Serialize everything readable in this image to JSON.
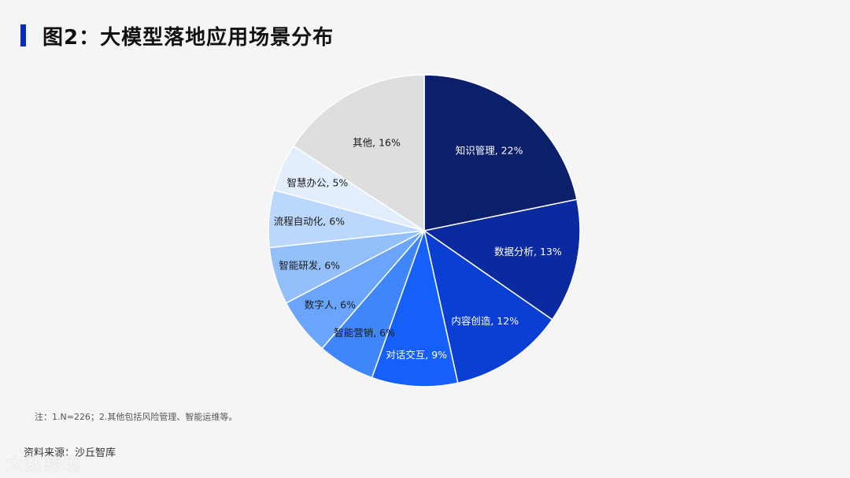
{
  "page": {
    "title": "图2：大模型落地应用场景分布",
    "note": "注：1.N=226；2.其他包括风险管理、智能运维等。",
    "source": "资料来源：沙丘智库",
    "watermark": "大数跨境"
  },
  "chart_data": {
    "type": "pie",
    "title": "",
    "slices": [
      {
        "label": "知识管理, 22%",
        "name": "知识管理",
        "value": 22,
        "color": "#0b1f6b",
        "text_color": "#ffffff"
      },
      {
        "label": "数据分析, 13%",
        "name": "数据分析",
        "value": 13,
        "color": "#0c2aa0",
        "text_color": "#ffffff"
      },
      {
        "label": "内容创造, 12%",
        "name": "内容创造",
        "value": 12,
        "color": "#0b3fd4",
        "text_color": "#ffffff"
      },
      {
        "label": "对话交互, 9%",
        "name": "对话交互",
        "value": 9,
        "color": "#1560fa",
        "text_color": "#ffffff"
      },
      {
        "label": "智能营销, 6%",
        "name": "智能营销",
        "value": 6,
        "color": "#3f86fb",
        "text_color": "#1a1a1a"
      },
      {
        "label": "数字人, 6%",
        "name": "数字人",
        "value": 6,
        "color": "#6aa5fb",
        "text_color": "#1a1a1a"
      },
      {
        "label": "智能研发, 6%",
        "name": "智能研发",
        "value": 6,
        "color": "#93bffb",
        "text_color": "#1a1a1a"
      },
      {
        "label": "流程自动化, 6%",
        "name": "流程自动化",
        "value": 6,
        "color": "#bcd7fc",
        "text_color": "#1a1a1a"
      },
      {
        "label": "智慧办公, 5%",
        "name": "智慧办公",
        "value": 5,
        "color": "#e3eefd",
        "text_color": "#1a1a1a"
      },
      {
        "label": "其他, 16%",
        "name": "其他",
        "value": 16,
        "color": "#dedede",
        "text_color": "#1a1a1a"
      }
    ]
  }
}
